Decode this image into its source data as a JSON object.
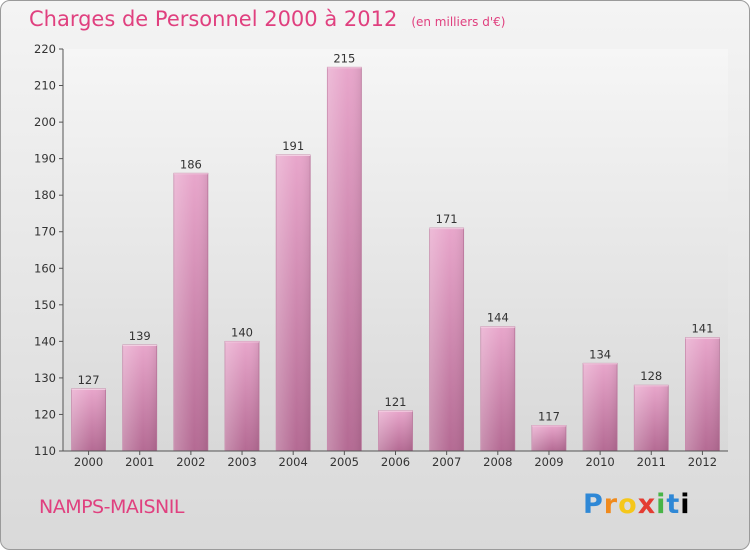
{
  "chart_data": {
    "type": "bar",
    "title": "Charges de Personnel 2000 à 2012",
    "subtitle": "(en milliers d'€)",
    "xlabel": "",
    "ylabel": "",
    "categories": [
      "2000",
      "2001",
      "2002",
      "2003",
      "2004",
      "2005",
      "2006",
      "2007",
      "2008",
      "2009",
      "2010",
      "2011",
      "2012"
    ],
    "values": [
      127,
      139,
      186,
      140,
      191,
      215,
      121,
      171,
      144,
      117,
      134,
      128,
      141
    ],
    "ylim": [
      110,
      220
    ],
    "yticks": [
      110,
      120,
      130,
      140,
      150,
      160,
      170,
      180,
      190,
      200,
      210,
      220
    ],
    "grid": false,
    "bar_color": "#d987b3"
  },
  "location": "NAMPS-MAISNIL",
  "logo_letters": [
    "P",
    "r",
    "o",
    "x",
    "i",
    "t",
    "i"
  ]
}
